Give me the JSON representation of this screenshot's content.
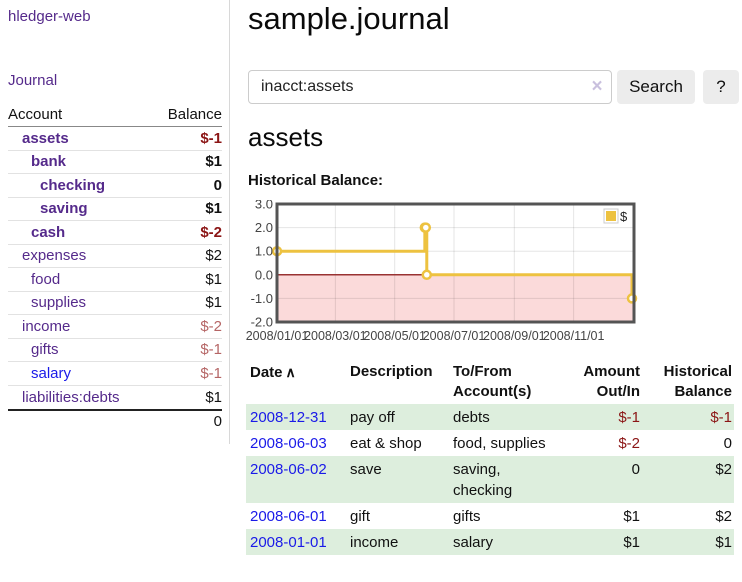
{
  "app": {
    "title": "hledger-web"
  },
  "sidebar": {
    "journal_link": "Journal",
    "accounts_table": {
      "headers": {
        "account": "Account",
        "balance": "Balance"
      },
      "rows": [
        {
          "name": "assets",
          "indent": 1,
          "bold": true,
          "balance": "$-1",
          "balance_style": "neg-strong"
        },
        {
          "name": "bank",
          "indent": 2,
          "bold": true,
          "balance": "$1",
          "balance_style": "pos"
        },
        {
          "name": "checking",
          "indent": 3,
          "bold": true,
          "balance": "0",
          "balance_style": "pos"
        },
        {
          "name": "saving",
          "indent": 3,
          "bold": true,
          "balance": "$1",
          "balance_style": "pos"
        },
        {
          "name": "cash",
          "indent": 2,
          "bold": true,
          "balance": "$-2",
          "balance_style": "neg-strong"
        },
        {
          "name": "expenses",
          "indent": 1,
          "bold": false,
          "balance": "$2",
          "balance_style": "pos"
        },
        {
          "name": "food",
          "indent": 2,
          "bold": false,
          "balance": "$1",
          "balance_style": "pos"
        },
        {
          "name": "supplies",
          "indent": 2,
          "bold": false,
          "balance": "$1",
          "balance_style": "pos"
        },
        {
          "name": "income",
          "indent": 1,
          "bold": false,
          "balance": "$-2",
          "balance_style": "neg-muted"
        },
        {
          "name": "gifts",
          "indent": 2,
          "bold": false,
          "balance": "$-1",
          "balance_style": "neg-muted"
        },
        {
          "name": "salary",
          "indent": 2,
          "bold": false,
          "link_style": "blue",
          "balance": "$-1",
          "balance_style": "neg-muted"
        },
        {
          "name": "liabilities:debts",
          "indent": 1,
          "bold": false,
          "balance": "$1",
          "balance_style": "pos"
        }
      ],
      "total": "0"
    }
  },
  "main": {
    "title": "sample.journal",
    "search": {
      "value": "inacct:assets",
      "clear_icon": "×",
      "button": "Search",
      "help_button": "?"
    },
    "account_heading": "assets",
    "chart_label": "Historical Balance:"
  },
  "chart_data": {
    "type": "line",
    "title": "Historical Balance",
    "legend": [
      {
        "label": "$",
        "color": "#edc240"
      }
    ],
    "x_tick_labels": [
      "2008/01/01",
      "2008/03/01",
      "2008/05/01",
      "2008/07/01",
      "2008/09/01",
      "2008/11/01"
    ],
    "x_tick_days": [
      0,
      60,
      121,
      182,
      244,
      305
    ],
    "y_ticks": [
      3.0,
      2.0,
      1.0,
      0.0,
      -1.0,
      -2.0
    ],
    "ylim": [
      -2,
      3
    ],
    "xlim_days": [
      0,
      365
    ],
    "grid": true,
    "legend_position": "top-right",
    "negative_region_color": "#fbdada",
    "zero_line_color": "#993333",
    "border_color": "#545454",
    "series": [
      {
        "name": "$",
        "color": "#edc240",
        "steps": true,
        "points": [
          {
            "date": "2008-01-01",
            "day": 0,
            "value": 1
          },
          {
            "date": "2008-06-01",
            "day": 152,
            "value": 2
          },
          {
            "date": "2008-06-02",
            "day": 153,
            "value": 2
          },
          {
            "date": "2008-06-03",
            "day": 154,
            "value": 0
          },
          {
            "date": "2008-12-31",
            "day": 365,
            "value": -1
          }
        ]
      }
    ]
  },
  "register": {
    "headers": {
      "date": "Date",
      "date_sort_icon": "∧",
      "description": "Description",
      "tofrom_line1": "To/From",
      "tofrom_line2": "Account(s)",
      "amount_line1": "Amount",
      "amount_line2": "Out/In",
      "balance_line1": "Historical",
      "balance_line2": "Balance"
    },
    "rows": [
      {
        "date": "2008-12-31",
        "description": "pay off",
        "accounts": "debts",
        "amount": "$-1",
        "amount_neg": true,
        "balance": "$-1",
        "balance_neg": true,
        "shade": true
      },
      {
        "date": "2008-06-03",
        "description": "eat & shop",
        "accounts": "food, supplies",
        "amount": "$-2",
        "amount_neg": true,
        "balance": "0",
        "balance_neg": false,
        "shade": false
      },
      {
        "date": "2008-06-02",
        "description": "save",
        "accounts": "saving, checking",
        "amount": "0",
        "amount_neg": false,
        "balance": "$2",
        "balance_neg": false,
        "shade": true
      },
      {
        "date": "2008-06-01",
        "description": "gift",
        "accounts": "gifts",
        "amount": "$1",
        "amount_neg": false,
        "balance": "$2",
        "balance_neg": false,
        "shade": false
      },
      {
        "date": "2008-01-01",
        "description": "income",
        "accounts": "salary",
        "amount": "$1",
        "amount_neg": false,
        "balance": "$1",
        "balance_neg": false,
        "shade": true
      }
    ]
  },
  "colors": {
    "link_purple": "#552a8b",
    "link_blue": "#1a1ae8",
    "negative_strong": "#8b1515",
    "negative_muted": "#b56565",
    "row_stripe_green": "#ddeedd",
    "series_gold": "#edc240",
    "chart_negative_pink": "#fbdada",
    "chart_zero_line": "#993333",
    "button_gray": "#ececec"
  }
}
